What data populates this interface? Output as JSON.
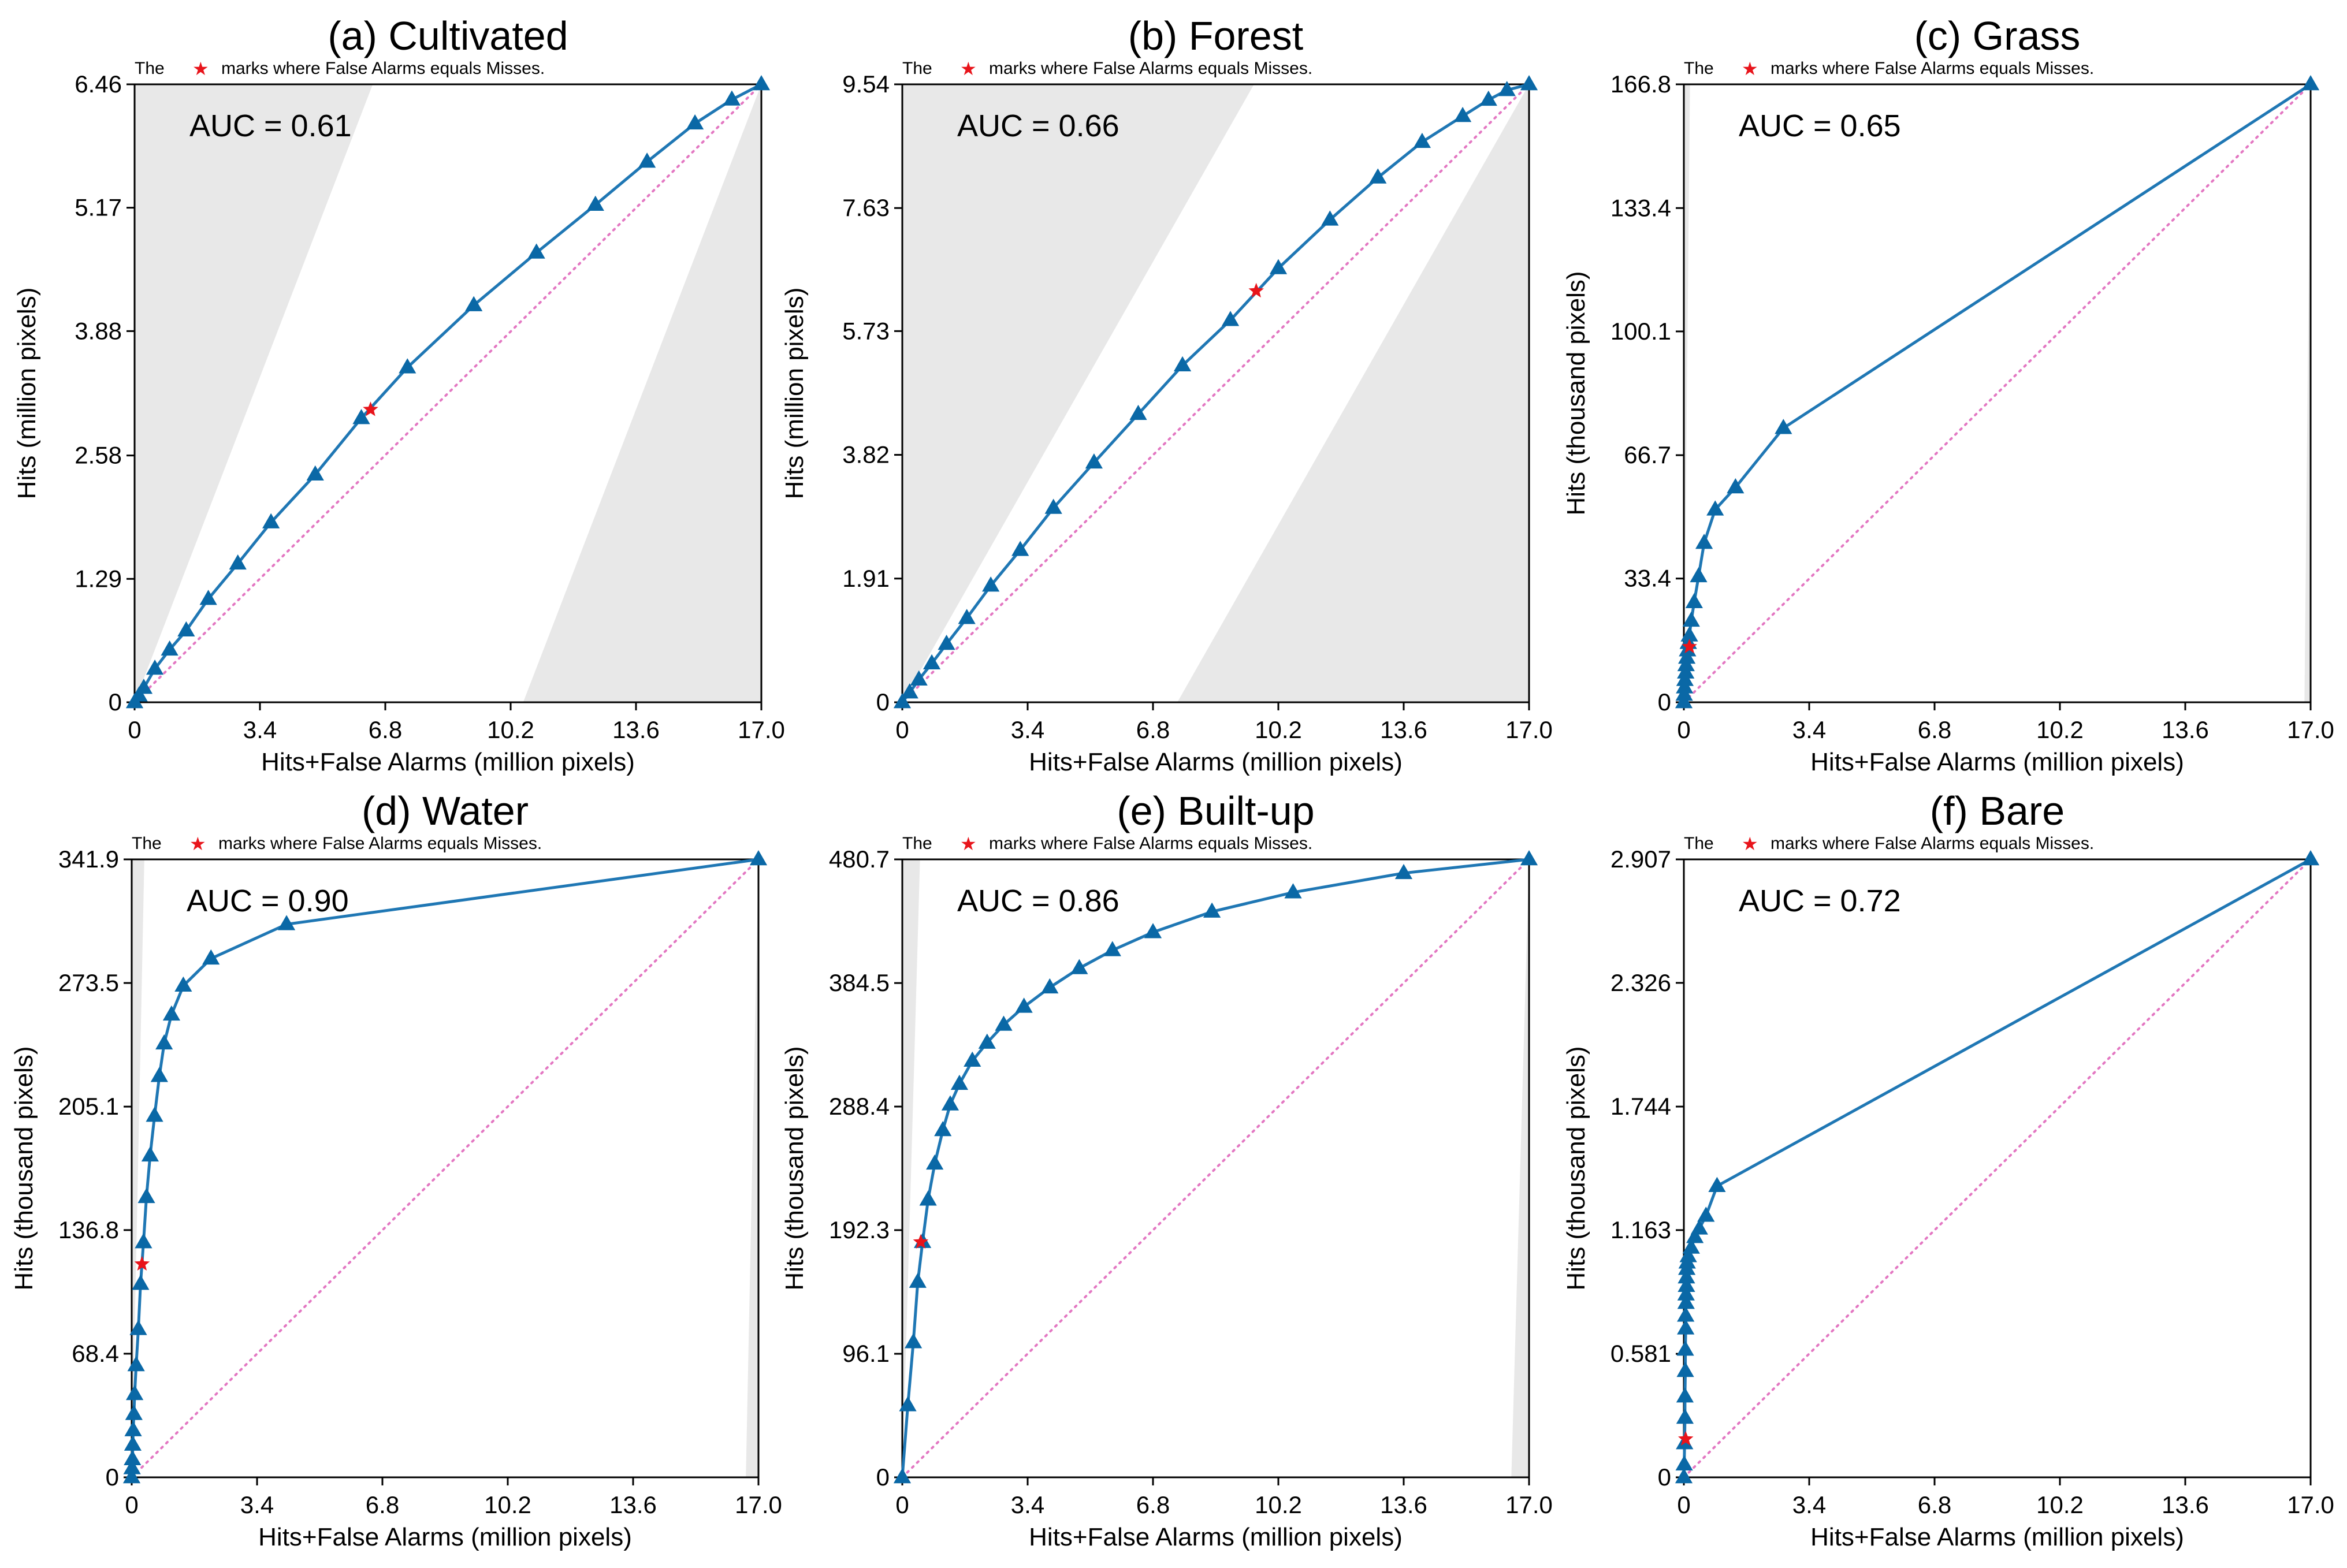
{
  "figure": {
    "note": {
      "prefix": "The",
      "star": "★",
      "suffix": "marks where False Alarms equals Misses."
    },
    "colors": {
      "line": "#1f77b4",
      "marker": "#0a68a6",
      "diagonal": "#e377c2",
      "star": "#e8141b",
      "shade": "#e8e8e8",
      "axis": "#000000"
    }
  },
  "chart_data": [
    {
      "type": "line",
      "title": "(a) Cultivated",
      "xlabel": "Hits+False Alarms (million pixels)",
      "ylabel": "Hits (million pixels)",
      "auc_label": "AUC = 0.61",
      "xlim": [
        0,
        17.0
      ],
      "ylim": [
        0,
        6.46
      ],
      "xticks": [
        0,
        3.4,
        6.8,
        10.2,
        13.6,
        17.0
      ],
      "xtick_labels": [
        "0",
        "3.4",
        "6.8",
        "10.2",
        "13.6",
        "17.0"
      ],
      "yticks": [
        0,
        1.29,
        2.58,
        3.88,
        5.17,
        6.46
      ],
      "ytick_labels": [
        "0",
        "1.29",
        "2.58",
        "3.88",
        "5.17",
        "6.46"
      ],
      "x": [
        0,
        0.12,
        0.25,
        0.55,
        0.95,
        1.4,
        2.0,
        2.8,
        3.7,
        4.9,
        6.15,
        7.4,
        9.2,
        10.9,
        12.5,
        13.9,
        15.2,
        16.2,
        17.0
      ],
      "y": [
        0,
        0.07,
        0.15,
        0.35,
        0.55,
        0.75,
        1.08,
        1.45,
        1.88,
        2.38,
        2.97,
        3.5,
        4.15,
        4.7,
        5.2,
        5.65,
        6.05,
        6.3,
        6.46
      ],
      "star": {
        "x": 6.4,
        "y": 3.06
      }
    },
    {
      "type": "line",
      "title": "(b) Forest",
      "xlabel": "Hits+False Alarms (million pixels)",
      "ylabel": "Hits (million pixels)",
      "auc_label": "AUC = 0.66",
      "xlim": [
        0,
        17.0
      ],
      "ylim": [
        0,
        9.54
      ],
      "xticks": [
        0,
        3.4,
        6.8,
        10.2,
        13.6,
        17.0
      ],
      "xtick_labels": [
        "0",
        "3.4",
        "6.8",
        "10.2",
        "13.6",
        "17.0"
      ],
      "yticks": [
        0,
        1.91,
        3.82,
        5.73,
        7.63,
        9.54
      ],
      "ytick_labels": [
        "0",
        "1.91",
        "3.82",
        "5.73",
        "7.63",
        "9.54"
      ],
      "x": [
        0,
        0.2,
        0.45,
        0.8,
        1.2,
        1.75,
        2.4,
        3.2,
        4.1,
        5.2,
        6.4,
        7.6,
        8.9,
        10.2,
        11.6,
        12.9,
        14.1,
        15.2,
        15.9,
        16.4,
        17.0
      ],
      "y": [
        0,
        0.15,
        0.35,
        0.6,
        0.9,
        1.3,
        1.8,
        2.35,
        3.0,
        3.7,
        4.45,
        5.2,
        5.9,
        6.7,
        7.45,
        8.1,
        8.65,
        9.05,
        9.3,
        9.45,
        9.54
      ],
      "star": {
        "x": 9.6,
        "y": 6.35
      }
    },
    {
      "type": "line",
      "title": "(c) Grass",
      "xlabel": "Hits+False Alarms (million pixels)",
      "ylabel": "Hits (thousand pixels)",
      "auc_label": "AUC = 0.65",
      "xlim": [
        0,
        17.0
      ],
      "ylim": [
        0,
        166.8
      ],
      "xticks": [
        0,
        3.4,
        6.8,
        10.2,
        13.6,
        17.0
      ],
      "xtick_labels": [
        "0",
        "3.4",
        "6.8",
        "10.2",
        "13.6",
        "17.0"
      ],
      "yticks": [
        0,
        33.4,
        66.7,
        100.1,
        133.4,
        166.8
      ],
      "ytick_labels": [
        "0",
        "33.4",
        "66.7",
        "100.1",
        "133.4",
        "166.8"
      ],
      "x": [
        0,
        0.01,
        0.02,
        0.03,
        0.05,
        0.06,
        0.08,
        0.1,
        0.12,
        0.15,
        0.2,
        0.28,
        0.4,
        0.55,
        0.85,
        1.4,
        2.7,
        17.0
      ],
      "y": [
        0,
        2,
        4,
        6,
        8,
        10,
        12,
        14,
        16,
        18,
        22,
        27,
        34,
        43,
        52,
        58,
        74,
        166.8
      ],
      "star": {
        "x": 0.15,
        "y": 15
      }
    },
    {
      "type": "line",
      "title": "(d) Water",
      "xlabel": "Hits+False Alarms (million pixels)",
      "ylabel": "Hits (thousand pixels)",
      "auc_label": "AUC = 0.90",
      "xlim": [
        0,
        17.0
      ],
      "ylim": [
        0,
        341.9
      ],
      "xticks": [
        0,
        3.4,
        6.8,
        10.2,
        13.6,
        17.0
      ],
      "xtick_labels": [
        "0",
        "3.4",
        "6.8",
        "10.2",
        "13.6",
        "17.0"
      ],
      "yticks": [
        0,
        68.4,
        136.8,
        205.1,
        273.5,
        341.9
      ],
      "ytick_labels": [
        "0",
        "68.4",
        "136.8",
        "205.1",
        "273.5",
        "341.9"
      ],
      "x": [
        0,
        0.01,
        0.02,
        0.03,
        0.04,
        0.06,
        0.08,
        0.12,
        0.18,
        0.24,
        0.32,
        0.4,
        0.5,
        0.62,
        0.75,
        0.88,
        1.08,
        1.4,
        2.15,
        4.2,
        17.0
      ],
      "y": [
        0,
        5,
        10,
        18,
        26,
        35,
        46,
        62,
        82,
        107,
        130,
        155,
        178,
        200,
        222,
        240,
        256,
        272,
        287,
        306,
        341.9
      ],
      "star": {
        "x": 0.28,
        "y": 118
      }
    },
    {
      "type": "line",
      "title": "(e) Built-up",
      "xlabel": "Hits+False Alarms (million pixels)",
      "ylabel": "Hits (thousand pixels)",
      "auc_label": "AUC = 0.86",
      "xlim": [
        0,
        17.0
      ],
      "ylim": [
        0,
        480.7
      ],
      "xticks": [
        0,
        3.4,
        6.8,
        10.2,
        13.6,
        17.0
      ],
      "xtick_labels": [
        "0",
        "3.4",
        "6.8",
        "10.2",
        "13.6",
        "17.0"
      ],
      "yticks": [
        0,
        96.1,
        192.3,
        288.4,
        384.5,
        480.7
      ],
      "ytick_labels": [
        "0",
        "96.1",
        "192.3",
        "288.4",
        "384.5",
        "480.7"
      ],
      "x": [
        0,
        0.15,
        0.3,
        0.42,
        0.55,
        0.7,
        0.88,
        1.1,
        1.3,
        1.55,
        1.9,
        2.3,
        2.75,
        3.3,
        4.0,
        4.8,
        5.7,
        6.8,
        8.4,
        10.6,
        13.6,
        17.0
      ],
      "y": [
        0,
        56,
        105,
        152,
        183,
        216,
        244,
        270,
        290,
        306,
        324,
        338,
        352,
        366,
        381,
        396,
        410,
        424,
        440,
        455,
        470,
        480.7
      ],
      "star": {
        "x": 0.5,
        "y": 183
      }
    },
    {
      "type": "line",
      "title": "(f) Bare",
      "xlabel": "Hits+False Alarms (million pixels)",
      "ylabel": "Hits (thousand pixels)",
      "auc_label": "AUC = 0.72",
      "xlim": [
        0,
        17.0
      ],
      "ylim": [
        0,
        2.907
      ],
      "xticks": [
        0,
        3.4,
        6.8,
        10.2,
        13.6,
        17.0
      ],
      "xtick_labels": [
        "0",
        "3.4",
        "6.8",
        "10.2",
        "13.6",
        "17.0"
      ],
      "yticks": [
        0,
        0.581,
        1.163,
        1.744,
        2.326,
        2.907
      ],
      "ytick_labels": [
        "0",
        "0.581",
        "1.163",
        "1.744",
        "2.326",
        "2.907"
      ],
      "x": [
        0,
        0.01,
        0.02,
        0.03,
        0.03,
        0.04,
        0.04,
        0.05,
        0.05,
        0.06,
        0.06,
        0.07,
        0.07,
        0.08,
        0.09,
        0.12,
        0.2,
        0.3,
        0.42,
        0.6,
        0.9,
        17.0
      ],
      "y": [
        0,
        0.06,
        0.16,
        0.28,
        0.38,
        0.5,
        0.6,
        0.7,
        0.76,
        0.82,
        0.86,
        0.9,
        0.94,
        0.98,
        1.01,
        1.04,
        1.08,
        1.13,
        1.17,
        1.23,
        1.37,
        2.907
      ],
      "star": {
        "x": 0.05,
        "y": 0.18
      }
    }
  ]
}
